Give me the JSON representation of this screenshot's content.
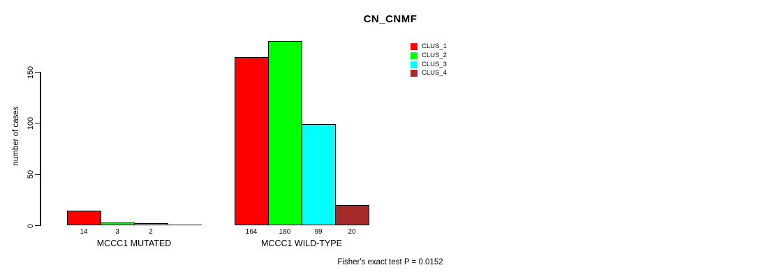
{
  "chart_data": {
    "type": "bar",
    "title": "CN_CNMF",
    "ylabel": "number of cases",
    "footnote": "Fisher's exact test P = 0.0152",
    "categories": [
      "MCCC1 MUTATED",
      "MCCC1 WILD-TYPE"
    ],
    "series": [
      {
        "name": "CLUS_1",
        "color": "#FF0000",
        "values": [
          14,
          164
        ]
      },
      {
        "name": "CLUS_2",
        "color": "#00FF00",
        "values": [
          3,
          180
        ]
      },
      {
        "name": "CLUS_3",
        "color": "#00FFFF",
        "values": [
          2,
          99
        ]
      },
      {
        "name": "CLUS_4",
        "color": "#A52A2A",
        "values": [
          0,
          20
        ]
      }
    ],
    "yticks": [
      0,
      50,
      100,
      150
    ],
    "ylim": [
      0,
      150
    ],
    "bar_value_labels": [
      [
        "14",
        "3",
        "2",
        ""
      ],
      [
        "164",
        "180",
        "99",
        "20"
      ]
    ],
    "grid": false,
    "legend_position": "top-right",
    "axis_color": "#000000"
  }
}
